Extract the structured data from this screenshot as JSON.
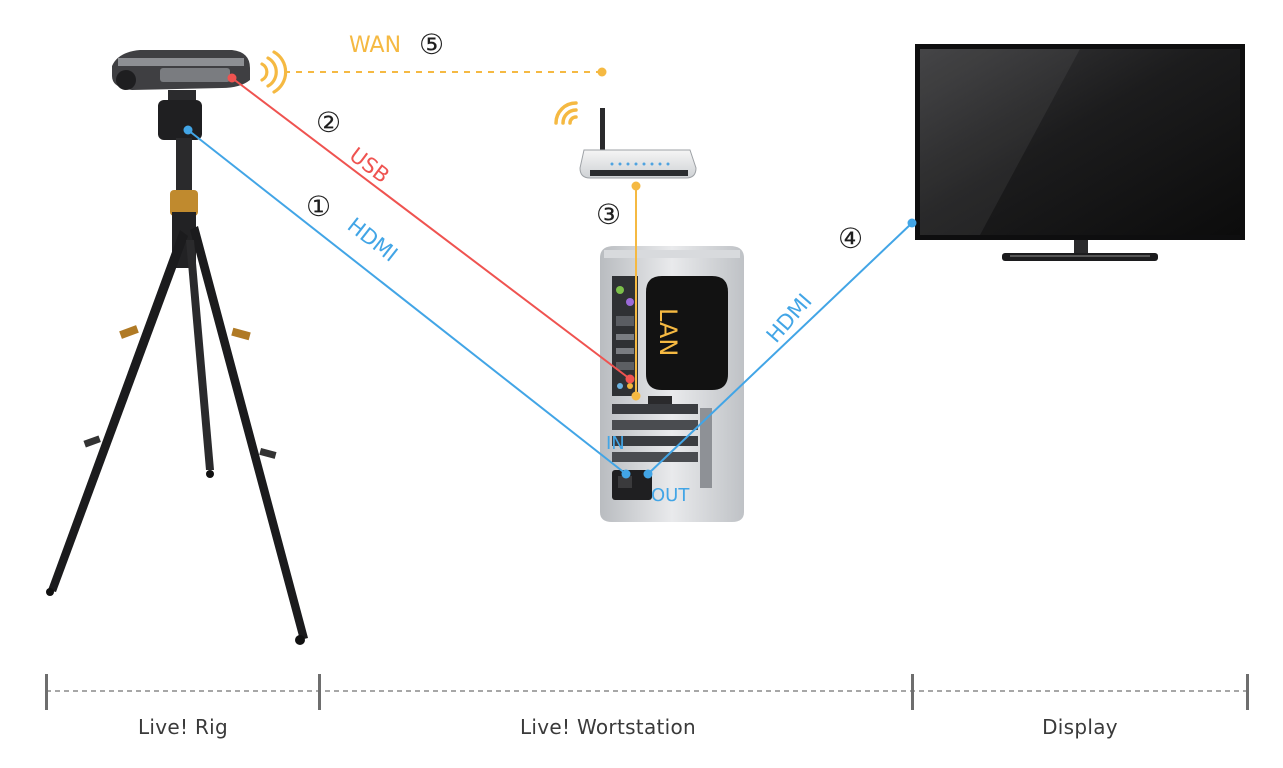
{
  "colors": {
    "usb": "#ef5350",
    "hdmi": "#42a5e6",
    "lan": "#f5b942",
    "wan": "#f5b942",
    "divider": "#8a8a8a",
    "label_text": "#3a3a3a"
  },
  "connections": {
    "hdmi_in": {
      "number": "①",
      "label": "HDMI"
    },
    "usb": {
      "number": "②",
      "label": "USB"
    },
    "lan": {
      "number": "③",
      "label": "LAN"
    },
    "hdmi_out": {
      "number": "④",
      "label": "HDMI"
    },
    "wan": {
      "number": "⑤",
      "label": "WAN"
    }
  },
  "ports": {
    "in_label": "IN",
    "out_label": "OUT"
  },
  "devices": [
    {
      "id": "camera-rig",
      "icon": "tripod-camera-icon"
    },
    {
      "id": "router",
      "icon": "wifi-router-icon"
    },
    {
      "id": "workstation",
      "icon": "pc-tower-icon"
    },
    {
      "id": "display",
      "icon": "tv-display-icon"
    }
  ],
  "zones": {
    "rig": "Live! Rig",
    "workstation": "Live! Wortstation",
    "display": "Display"
  }
}
